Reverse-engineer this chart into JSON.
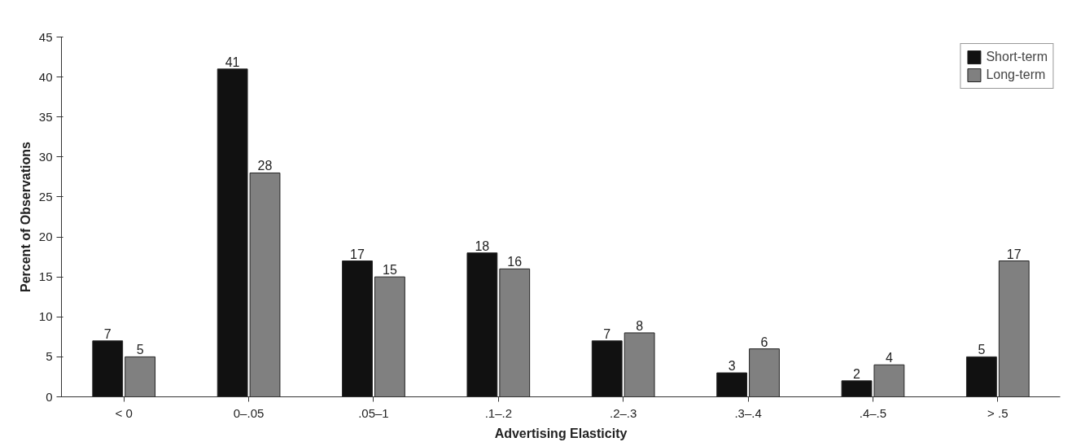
{
  "chart_data": {
    "type": "bar",
    "xlabel": "Advertising Elasticity",
    "ylabel": "Percent of Observations",
    "categories": [
      "< 0",
      "0–.05",
      ".05–1",
      ".1–.2",
      ".2–.3",
      ".3–.4",
      ".4–.5",
      "> .5"
    ],
    "series": [
      {
        "name": "Short-term",
        "color": "#111111",
        "values": [
          7,
          41,
          17,
          18,
          7,
          3,
          2,
          5
        ]
      },
      {
        "name": "Long-term",
        "color": "#808080",
        "values": [
          5,
          28,
          15,
          16,
          8,
          6,
          4,
          17
        ]
      }
    ],
    "ylim": [
      0,
      45
    ],
    "yticks": [
      0,
      5,
      10,
      15,
      20,
      25,
      30,
      35,
      40,
      45
    ],
    "data_labels": true,
    "legend": "top right",
    "grid": false
  }
}
